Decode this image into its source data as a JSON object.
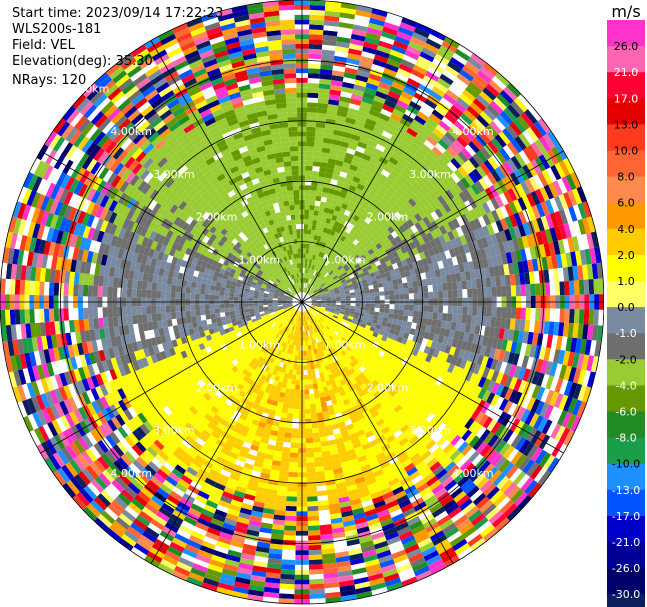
{
  "info": {
    "start_time": "Start time: 2023/09/14 17:22:23",
    "instrument": "WLS200s-181",
    "field": "Field: VEL",
    "elevation": "Elevation(deg): 35.30",
    "nrays": "NRays: 120"
  },
  "colorbar": {
    "unit": "m/s",
    "bins": [
      {
        "label": "",
        "color": "#ff33cc"
      },
      {
        "label": "26.0",
        "color": "#ff66b2"
      },
      {
        "label": "21.0",
        "color": "#ff0033"
      },
      {
        "label": "17.0",
        "color": "#e60000"
      },
      {
        "label": "13.0",
        "color": "#ff3b1f"
      },
      {
        "label": "10.0",
        "color": "#ff6633"
      },
      {
        "label": "8.0",
        "color": "#ff8a4d"
      },
      {
        "label": "6.0",
        "color": "#ff9900"
      },
      {
        "label": "4.0",
        "color": "#ffcc00"
      },
      {
        "label": "2.0",
        "color": "#ffff00"
      },
      {
        "label": "1.0",
        "color": "#ffff66"
      },
      {
        "label": "0.0",
        "color": "#7a8aa0"
      },
      {
        "label": "-1.0",
        "color": "#6f6f6f"
      },
      {
        "label": "-2.0",
        "color": "#99cc33"
      },
      {
        "label": "-4.0",
        "color": "#669900"
      },
      {
        "label": "-6.0",
        "color": "#228b22"
      },
      {
        "label": "-8.0",
        "color": "#1a9e4a"
      },
      {
        "label": "-10.0",
        "color": "#1e90ff"
      },
      {
        "label": "-13.0",
        "color": "#0055ff"
      },
      {
        "label": "-17.0",
        "color": "#0000cc"
      },
      {
        "label": "-21.0",
        "color": "#000099"
      },
      {
        "label": "-26.0",
        "color": "#00006b"
      },
      {
        "label": "-30.0",
        "color": "#0a1f5c"
      }
    ]
  },
  "chart_data": {
    "type": "heatmap",
    "projection": "polar",
    "nrays": 120,
    "range_rings": [
      "1.0km",
      "2.00km",
      "3.00km",
      "4.00km",
      "5.00km"
    ],
    "ring_km": [
      1,
      2,
      3,
      4,
      5
    ],
    "max_range_km": 5,
    "spokes_deg": [
      0,
      30,
      60,
      90,
      120,
      150,
      180,
      210,
      240,
      270,
      300,
      330
    ],
    "quadrant_labels": {
      "1.0km": [
        "1.00km",
        "1.00km",
        "1.00km",
        "1.00km"
      ],
      "2.00km": [
        "2.00km",
        "2.00km",
        "2.00km",
        "2.00km"
      ],
      "3.00km": [
        "3.00km",
        "3.00km",
        "3.00km",
        "3.00km"
      ],
      "4.00km": [
        "4.00km",
        "4.00km",
        "4.00km",
        "4.00km"
      ],
      "5.00km": [
        "5.00km"
      ]
    },
    "velocity_summary": {
      "north_inner": "-2.0 to -4.0",
      "south_inner": "2.0 to 4.0",
      "east_west_inner": "0.0 to -1.0",
      "outer_noise_km": 3.5
    }
  }
}
